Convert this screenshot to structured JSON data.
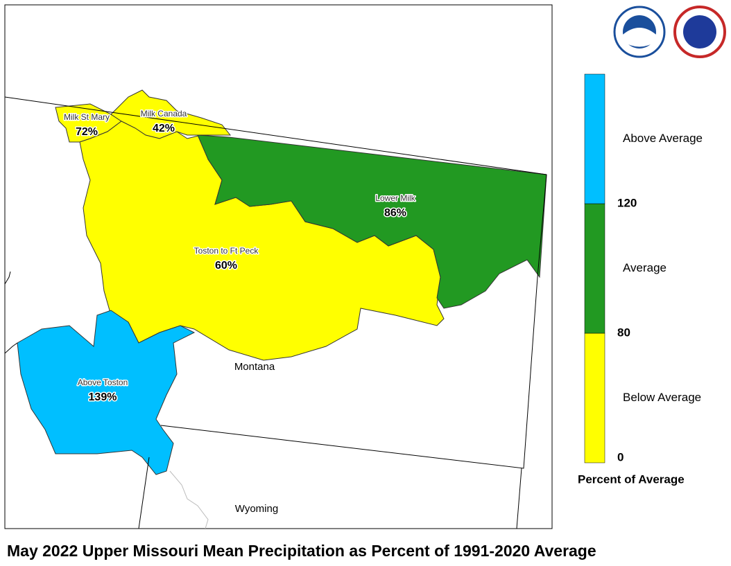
{
  "title": "May 2022 Upper Missouri Mean Precipitation as Percent of 1991-2020 Average",
  "map": {
    "regions": [
      {
        "name": "Milk St Mary",
        "value": 72,
        "value_label": "72%",
        "color": "#ffff00"
      },
      {
        "name": "Milk Canada",
        "value": 42,
        "value_label": "42%",
        "color": "#ffff00"
      },
      {
        "name": "Toston to Ft Peck",
        "value": 60,
        "value_label": "60%",
        "color": "#ffff00"
      },
      {
        "name": "Lower Milk",
        "value": 86,
        "value_label": "86%",
        "color": "#229922"
      },
      {
        "name": "Above Toston",
        "value": 139,
        "value_label": "139%",
        "color": "#00bfff"
      }
    ],
    "places": [
      "Montana",
      "Wyoming"
    ]
  },
  "legend": {
    "title": "Percent of Average",
    "classes": [
      {
        "label": "Below Average",
        "color": "#ffff00"
      },
      {
        "label": "Average",
        "color": "#229922"
      },
      {
        "label": "Above Average",
        "color": "#00bfff"
      }
    ],
    "breaks": [
      0,
      80,
      120
    ]
  }
}
